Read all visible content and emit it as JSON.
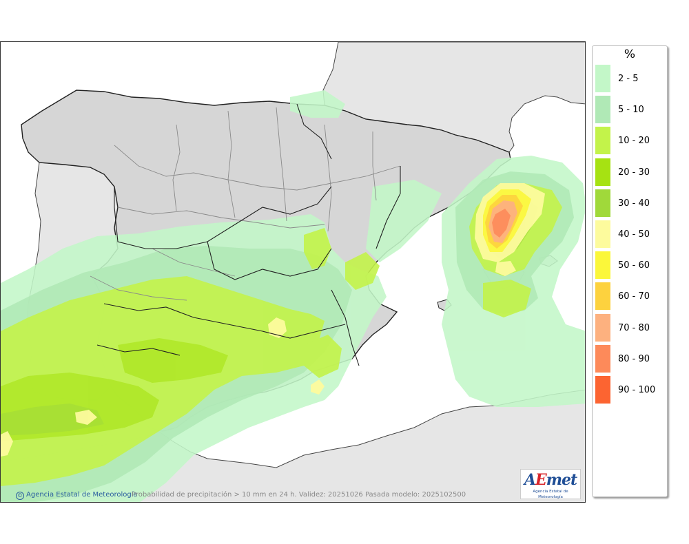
{
  "map": {
    "caption": "Probabilidad de precipitación > 10 mm en 24 h. Validez: 20251026 Pasada modelo: 2025102500",
    "copyright": "Agencia Estatal de Meteorología",
    "logo": {
      "wordmark_a": "A",
      "wordmark_e": "E",
      "wordmark_rest": "met",
      "subtitle": "Agencia Estatal de Meteorología"
    },
    "colors": {
      "sea": "#ffffff",
      "foreign_land": "#e6e6e6",
      "spain_land": "#d6d6d6",
      "borders": "#222222",
      "regions": "#8a8a8a"
    }
  },
  "legend": {
    "title": "%",
    "items": [
      {
        "label": "2 - 5",
        "color": "#c3f7c8"
      },
      {
        "label": "5 - 10",
        "color": "#b0e9b6"
      },
      {
        "label": "10 - 20",
        "color": "#c3f34a"
      },
      {
        "label": "20 - 30",
        "color": "#a6e212"
      },
      {
        "label": "30 - 40",
        "color": "#a0d93a"
      },
      {
        "label": "40 - 50",
        "color": "#fdfb9d"
      },
      {
        "label": "50 - 60",
        "color": "#fbf73a"
      },
      {
        "label": "60 - 70",
        "color": "#fdd23e"
      },
      {
        "label": "70 - 80",
        "color": "#fdb17f"
      },
      {
        "label": "80 - 90",
        "color": "#fd8a5a"
      },
      {
        "label": "90 - 100",
        "color": "#fc6431"
      }
    ]
  }
}
